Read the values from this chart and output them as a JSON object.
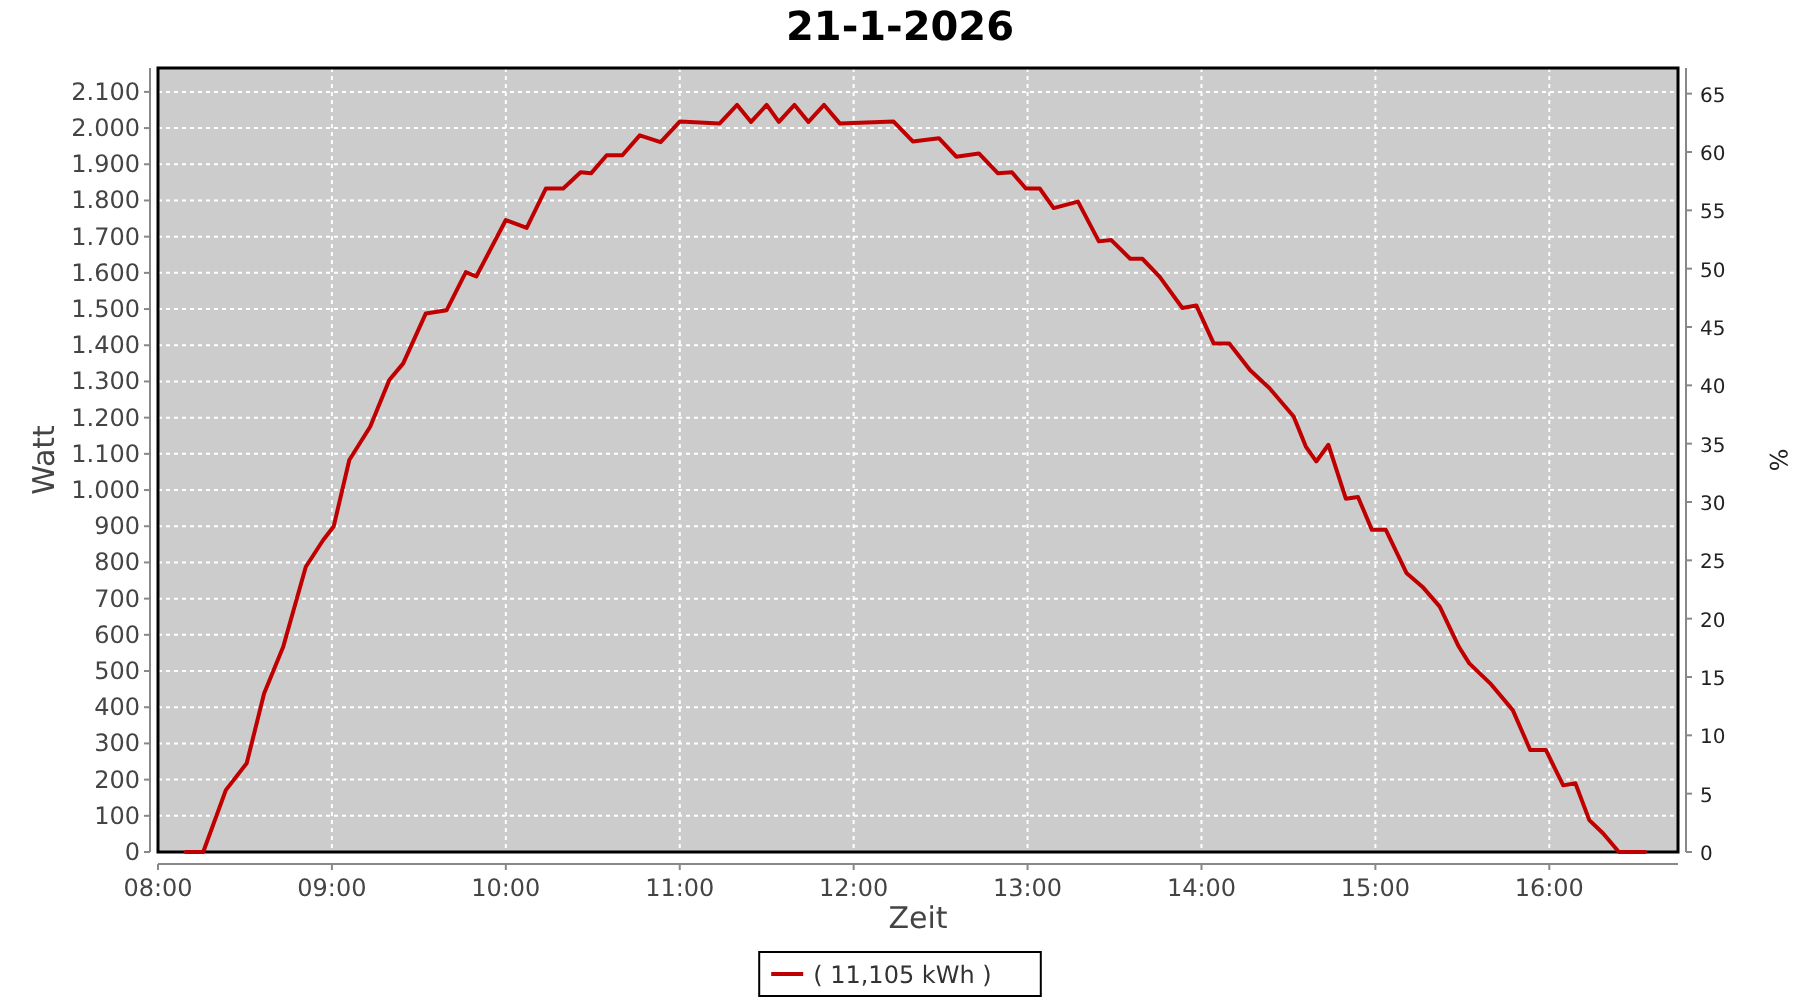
{
  "chart_data": {
    "type": "line",
    "title": "21-1-2026",
    "xlabel": "Zeit",
    "ylabel": "Watt",
    "y2label": "%",
    "x": [
      8.16,
      8.26,
      8.39,
      8.51,
      8.61,
      8.72,
      8.85,
      8.95,
      9.01,
      9.1,
      9.22,
      9.33,
      9.41,
      9.54,
      9.66,
      9.77,
      9.83,
      10.0,
      10.12,
      10.23,
      10.33,
      10.43,
      10.49,
      10.58,
      10.67,
      10.77,
      10.89,
      11.0,
      11.23,
      11.33,
      11.41,
      11.5,
      11.57,
      11.66,
      11.74,
      11.83,
      11.92,
      12.23,
      12.34,
      12.49,
      12.59,
      12.72,
      12.83,
      12.91,
      12.99,
      13.07,
      13.15,
      13.29,
      13.41,
      13.48,
      13.59,
      13.66,
      13.76,
      13.89,
      13.97,
      14.07,
      14.16,
      14.28,
      14.39,
      14.53,
      14.6,
      14.66,
      14.73,
      14.83,
      14.9,
      14.98,
      15.06,
      15.18,
      15.27,
      15.37,
      15.48,
      15.54,
      15.66,
      15.79,
      15.89,
      15.98,
      16.08,
      16.15,
      16.23,
      16.31,
      16.4,
      16.55
    ],
    "series": [
      {
        "name": "( 11,105 kWh )",
        "color": "#c00000",
        "values": [
          0,
          0,
          171,
          245,
          438,
          567,
          788,
          862,
          899,
          1083,
          1175,
          1304,
          1350,
          1488,
          1497,
          1602,
          1590,
          1746,
          1724,
          1833,
          1833,
          1878,
          1875,
          1925,
          1925,
          1980,
          1961,
          2018,
          2013,
          2064,
          2017,
          2064,
          2017,
          2064,
          2017,
          2064,
          2013,
          2018,
          1963,
          1972,
          1921,
          1930,
          1875,
          1878,
          1833,
          1833,
          1779,
          1797,
          1687,
          1691,
          1639,
          1639,
          1589,
          1503,
          1510,
          1405,
          1405,
          1331,
          1282,
          1203,
          1120,
          1079,
          1125,
          976,
          981,
          890,
          890,
          770,
          733,
          678,
          567,
          521,
          466,
          392,
          282,
          282,
          184,
          190,
          88,
          51,
          0,
          0
        ]
      }
    ],
    "xlim": [
      8,
      16.74
    ],
    "xticks": [
      {
        "value": 8,
        "label": "08:00"
      },
      {
        "value": 9,
        "label": "09:00"
      },
      {
        "value": 10,
        "label": "10:00"
      },
      {
        "value": 11,
        "label": "11:00"
      },
      {
        "value": 12,
        "label": "12:00"
      },
      {
        "value": 13,
        "label": "13:00"
      },
      {
        "value": 14,
        "label": "14:00"
      },
      {
        "value": 15,
        "label": "15:00"
      },
      {
        "value": 16,
        "label": "16:00"
      }
    ],
    "ylim": [
      0,
      2166
    ],
    "yticks": [
      0,
      100,
      200,
      300,
      400,
      500,
      600,
      700,
      800,
      900,
      {
        "value": 1000,
        "label": "1.000"
      },
      {
        "value": 1100,
        "label": "1.100"
      },
      {
        "value": 1200,
        "label": "1.200"
      },
      {
        "value": 1300,
        "label": "1.300"
      },
      {
        "value": 1400,
        "label": "1.400"
      },
      {
        "value": 1500,
        "label": "1.500"
      },
      {
        "value": 1600,
        "label": "1.600"
      },
      {
        "value": 1700,
        "label": "1.700"
      },
      {
        "value": 1800,
        "label": "1.800"
      },
      {
        "value": 1900,
        "label": "1.900"
      },
      {
        "value": 2000,
        "label": "2.000"
      },
      {
        "value": 2100,
        "label": "2.100"
      }
    ],
    "y2lim": [
      0,
      67.2
    ],
    "y2ticks": [
      0,
      5,
      10,
      15,
      20,
      25,
      30,
      35,
      40,
      45,
      50,
      55,
      60,
      65
    ],
    "grid": true,
    "legend": "bottom",
    "marker": "none",
    "line_style": "solid"
  }
}
